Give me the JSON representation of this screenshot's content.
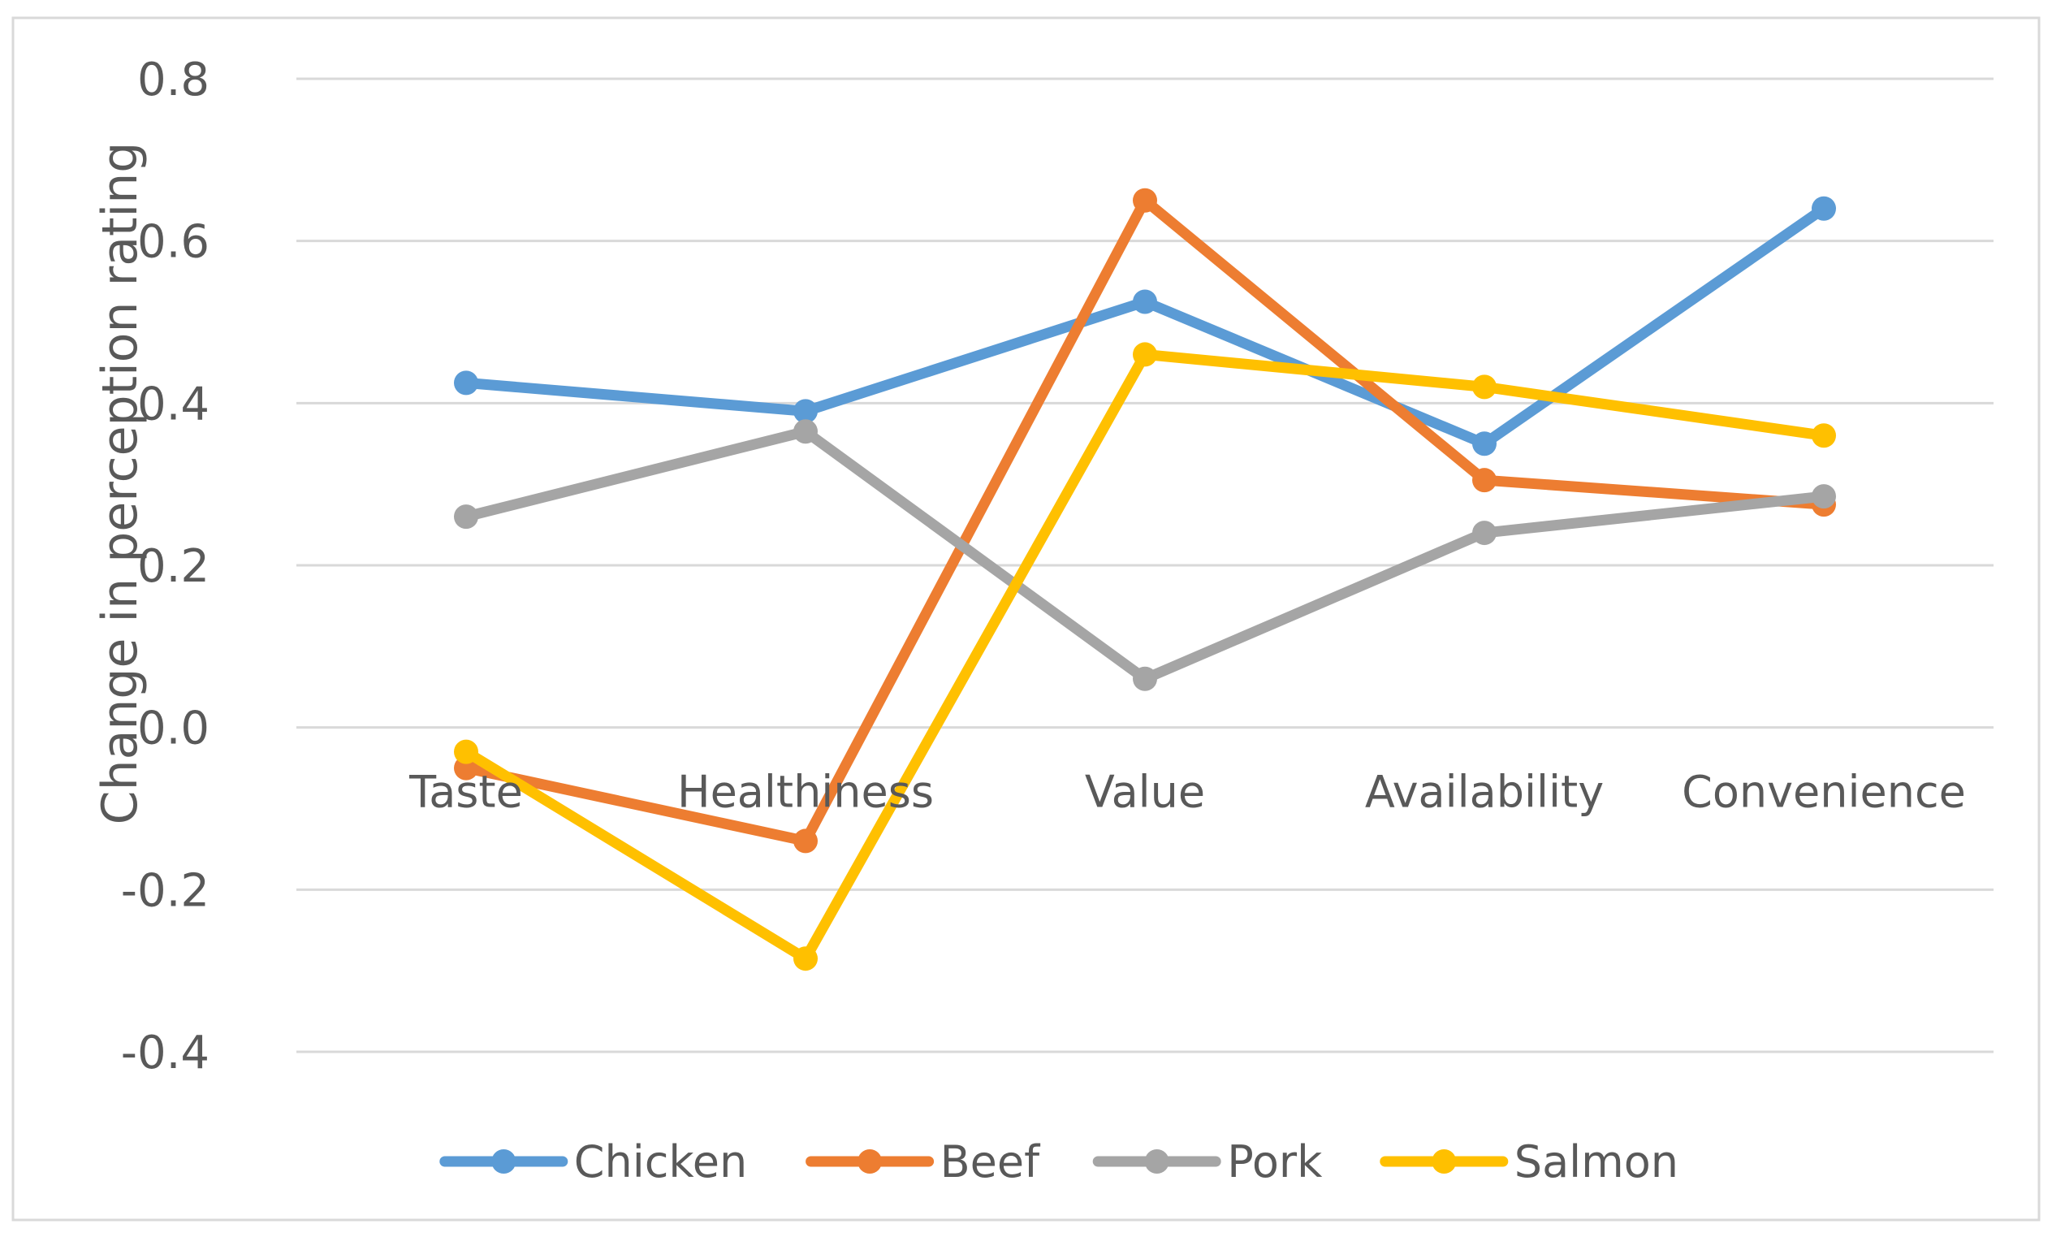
{
  "chart_data": {
    "type": "line",
    "title": "",
    "xlabel": "",
    "ylabel": "Change in perception rating",
    "categories": [
      "Taste",
      "Healthiness",
      "Value",
      "Availability",
      "Convenience"
    ],
    "ylim": [
      -0.4,
      0.8
    ],
    "yticks": [
      "0.8",
      "0.6",
      "0.4",
      "0.2",
      "0.0",
      "-0.2",
      "-0.4"
    ],
    "grid": true,
    "legend_position": "bottom",
    "series": [
      {
        "name": "Chicken",
        "color": "#5B9BD5",
        "values": [
          0.425,
          0.39,
          0.525,
          0.35,
          0.64
        ]
      },
      {
        "name": "Beef",
        "color": "#ED7D31",
        "values": [
          -0.05,
          -0.14,
          0.65,
          0.305,
          0.275
        ]
      },
      {
        "name": "Pork",
        "color": "#A5A5A5",
        "values": [
          0.26,
          0.365,
          0.06,
          0.24,
          0.285
        ]
      },
      {
        "name": "Salmon",
        "color": "#FFC000",
        "values": [
          -0.03,
          -0.285,
          0.46,
          0.42,
          0.36
        ]
      }
    ]
  }
}
